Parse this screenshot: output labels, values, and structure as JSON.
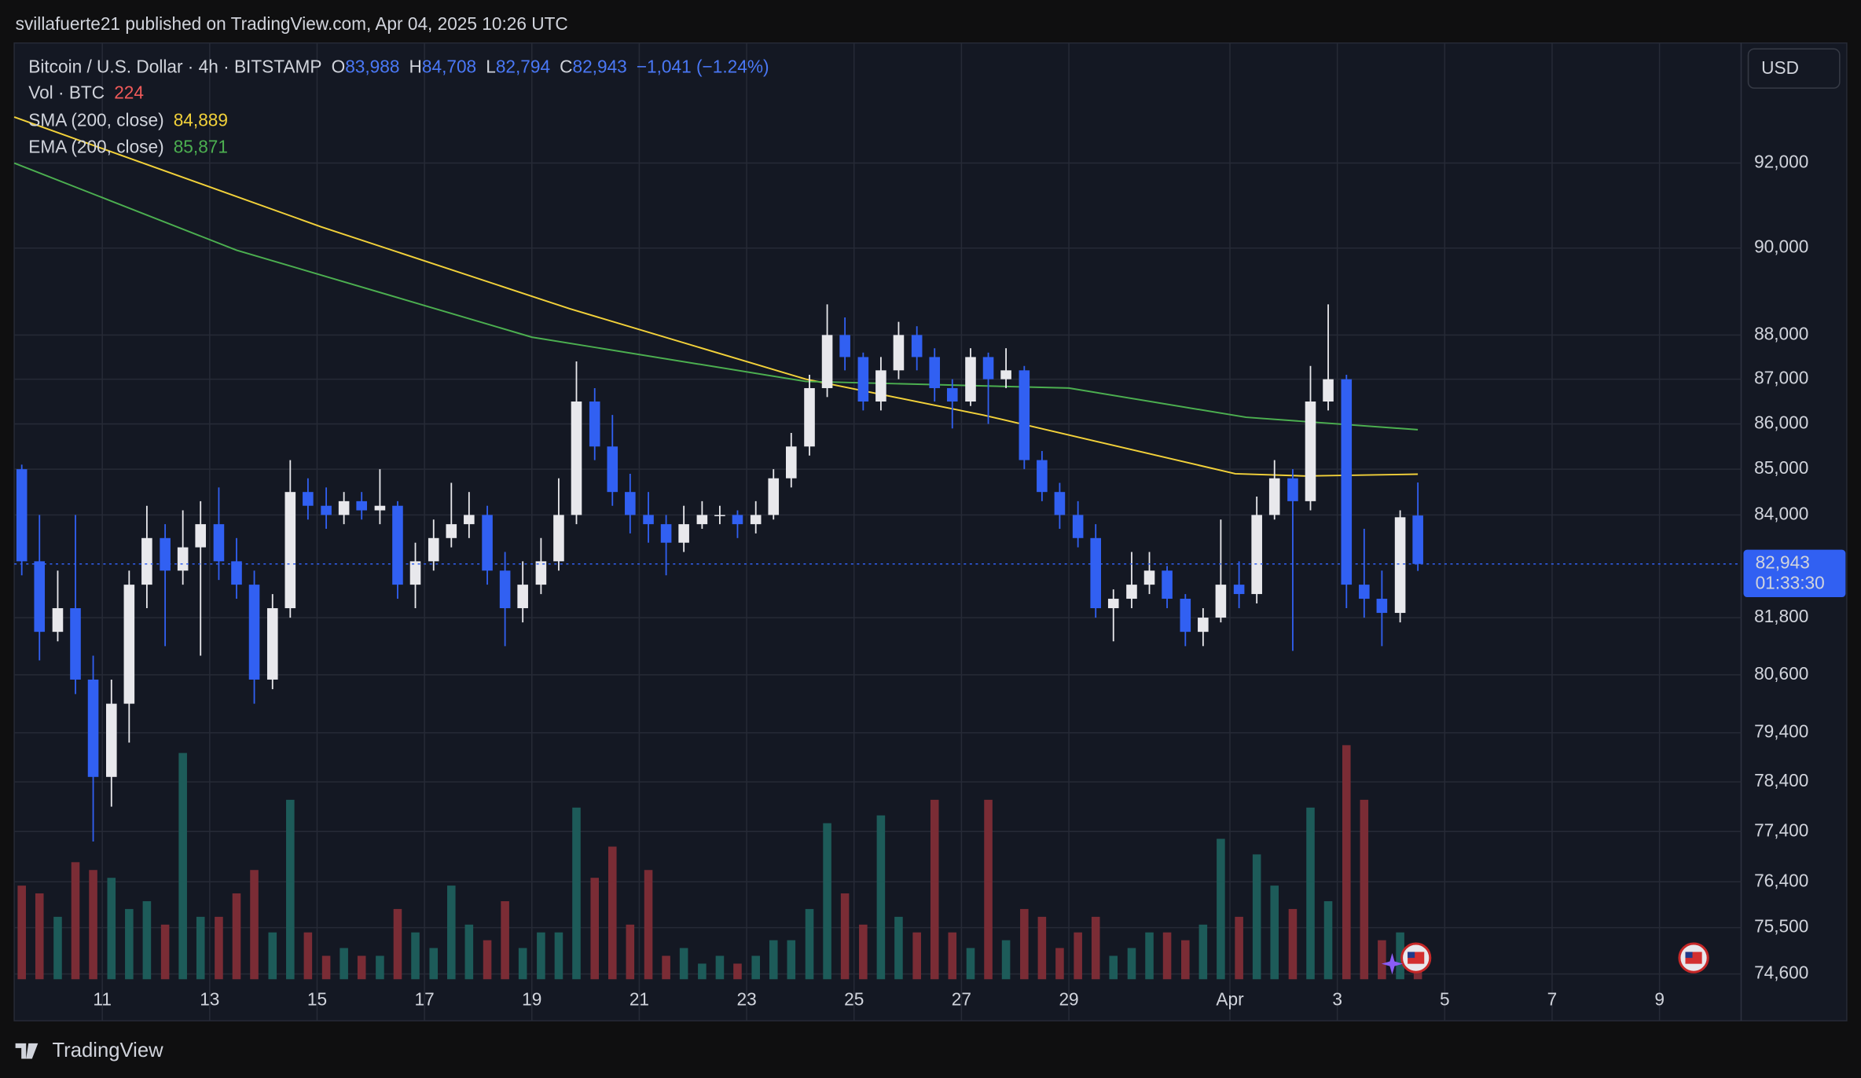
{
  "header": {
    "published": "svillafuerte21 published on TradingView.com, Apr 04, 2025 10:26 UTC",
    "currency": "USD",
    "brand": "TradingView"
  },
  "legend": {
    "ohlc": [
      {
        "key": "O",
        "value": "83,988"
      },
      {
        "key": "H",
        "value": "84,708"
      },
      {
        "key": "L",
        "value": "82,794"
      },
      {
        "key": "C",
        "value": "82,943"
      }
    ],
    "change": "−1,041 (−1.24%)",
    "volume_name": "Vol · BTC",
    "volume_value": "224"
  },
  "chart_data": {
    "type": "candlestick",
    "title": "Bitcoin / U.S. Dollar · 4h · BITSTAMP",
    "log_scale": true,
    "grid": true,
    "up_color": "#e8e8ec",
    "down_color": "#3160f2",
    "volume_up_color": "#1d5b59",
    "volume_down_color": "#7a2c35",
    "xlim": [
      9.36,
      41.52
    ],
    "xticks": [
      11,
      13,
      15,
      17,
      19,
      21,
      23,
      25,
      27,
      29,
      {
        "value": 32,
        "label": "Apr"
      },
      {
        "value": 34,
        "label": "3"
      },
      {
        "value": 36,
        "label": "5"
      },
      {
        "value": 38,
        "label": "7"
      },
      {
        "value": 40,
        "label": "9"
      }
    ],
    "ylim": [
      74500,
      94900
    ],
    "yticks": [
      {
        "value": 92000,
        "label": "92,000"
      },
      {
        "value": 90000,
        "label": "90,000"
      },
      {
        "value": 88000,
        "label": "88,000"
      },
      {
        "value": 87000,
        "label": "87,000"
      },
      {
        "value": 86000,
        "label": "86,000"
      },
      {
        "value": 85000,
        "label": "85,000"
      },
      {
        "value": 84000,
        "label": "84,000"
      },
      {
        "value": 81800,
        "label": "81,800"
      },
      {
        "value": 80600,
        "label": "80,600"
      },
      {
        "value": 79400,
        "label": "79,400"
      },
      {
        "value": 78400,
        "label": "78,400"
      },
      {
        "value": 77400,
        "label": "77,400"
      },
      {
        "value": 76400,
        "label": "76,400"
      },
      {
        "value": 75500,
        "label": "75,500"
      },
      {
        "value": 74600,
        "label": "74,600"
      }
    ],
    "y2lim": [
      0,
      12000
    ],
    "x": [
      9.5,
      9.83,
      10.17,
      10.5,
      10.83,
      11.17,
      11.5,
      11.83,
      12.17,
      12.5,
      12.83,
      13.17,
      13.5,
      13.83,
      14.17,
      14.5,
      14.83,
      15.17,
      15.5,
      15.83,
      16.17,
      16.5,
      16.83,
      17.17,
      17.5,
      17.83,
      18.17,
      18.5,
      18.83,
      19.17,
      19.5,
      19.83,
      20.17,
      20.5,
      20.83,
      21.17,
      21.5,
      21.83,
      22.17,
      22.5,
      22.83,
      23.17,
      23.5,
      23.83,
      24.17,
      24.5,
      24.83,
      25.17,
      25.5,
      25.83,
      26.17,
      26.5,
      26.83,
      27.17,
      27.5,
      27.83,
      28.17,
      28.5,
      28.83,
      29.17,
      29.5,
      29.83,
      30.17,
      30.5,
      30.83,
      31.17,
      31.5,
      31.83,
      32.17,
      32.5,
      32.83,
      33.17,
      33.5,
      33.83,
      34.17,
      34.5,
      34.83,
      35.17,
      35.5
    ],
    "open": [
      85000,
      83000,
      81500,
      82000,
      80500,
      78500,
      80000,
      82500,
      83500,
      82800,
      83300,
      83800,
      83000,
      82500,
      80500,
      82000,
      84500,
      84200,
      84000,
      84300,
      84100,
      84200,
      82500,
      83000,
      83500,
      83800,
      84000,
      82800,
      82000,
      82500,
      83000,
      84000,
      86500,
      85500,
      84500,
      84000,
      83800,
      83400,
      83800,
      84000,
      84000,
      83800,
      84000,
      84800,
      85500,
      86800,
      88000,
      87500,
      86500,
      87200,
      88000,
      87500,
      86800,
      86500,
      87500,
      87000,
      87200,
      85200,
      84500,
      84000,
      83500,
      82000,
      82200,
      82500,
      82800,
      82200,
      81500,
      81800,
      82500,
      82300,
      84000,
      84800,
      84300,
      86500,
      87000,
      82500,
      82200,
      81900,
      83988
    ],
    "high": [
      85100,
      84000,
      82800,
      84000,
      81000,
      80500,
      82800,
      84200,
      83800,
      84100,
      84300,
      84600,
      83500,
      82800,
      82300,
      85200,
      84800,
      84600,
      84500,
      84500,
      85000,
      84300,
      83400,
      83900,
      84700,
      84500,
      84200,
      83200,
      83000,
      83500,
      84800,
      87400,
      86800,
      86200,
      84900,
      84500,
      84000,
      84200,
      84300,
      84200,
      84100,
      84300,
      85000,
      85800,
      87100,
      88700,
      88400,
      87600,
      87500,
      88300,
      88200,
      87700,
      87000,
      87700,
      87600,
      87700,
      87300,
      85400,
      84700,
      84300,
      83800,
      82400,
      83200,
      83200,
      82900,
      82300,
      82000,
      83900,
      83000,
      84400,
      85200,
      85000,
      87300,
      88700,
      87100,
      83700,
      82800,
      84100,
      84708
    ],
    "low": [
      82700,
      80900,
      81300,
      80200,
      77200,
      77900,
      79200,
      82000,
      81200,
      82500,
      81000,
      82600,
      82200,
      80000,
      80300,
      81800,
      83900,
      83700,
      83800,
      83900,
      83800,
      82200,
      82000,
      82800,
      83300,
      83500,
      82500,
      81200,
      81700,
      82300,
      82800,
      83800,
      85200,
      84200,
      83600,
      83400,
      82700,
      83200,
      83700,
      83800,
      83500,
      83600,
      83900,
      84600,
      85300,
      86600,
      87200,
      86300,
      86300,
      87000,
      87200,
      86500,
      85900,
      86400,
      86000,
      86800,
      85000,
      84300,
      83700,
      83300,
      81800,
      81300,
      82000,
      82300,
      82000,
      81200,
      81200,
      81700,
      82000,
      82100,
      83900,
      81100,
      84100,
      86300,
      82000,
      81800,
      81200,
      81700,
      82794
    ],
    "close": [
      83000,
      81500,
      82000,
      80500,
      78500,
      80000,
      82500,
      83500,
      82800,
      83300,
      83800,
      83000,
      82500,
      80500,
      82000,
      84500,
      84200,
      84000,
      84300,
      84100,
      84200,
      82500,
      83000,
      83500,
      83800,
      84000,
      82800,
      82000,
      82500,
      83000,
      84000,
      86500,
      85500,
      84500,
      84000,
      83800,
      83400,
      83800,
      84000,
      84000,
      83800,
      84000,
      84800,
      85500,
      86800,
      88000,
      87500,
      86500,
      87200,
      88000,
      87500,
      86800,
      86500,
      87500,
      87000,
      87200,
      85200,
      84500,
      84000,
      83500,
      82000,
      82200,
      82500,
      82800,
      82200,
      81500,
      81800,
      82500,
      82300,
      84000,
      84800,
      84300,
      86500,
      87000,
      82500,
      82200,
      81900,
      83950,
      82943
    ],
    "volume": [
      1200,
      1100,
      800,
      1500,
      1400,
      1300,
      900,
      1000,
      700,
      2900,
      800,
      800,
      1100,
      1400,
      600,
      2300,
      600,
      300,
      400,
      300,
      300,
      900,
      600,
      400,
      1200,
      700,
      500,
      1000,
      400,
      600,
      600,
      2200,
      1300,
      1700,
      700,
      1400,
      300,
      400,
      200,
      300,
      200,
      300,
      500,
      500,
      900,
      2000,
      1100,
      700,
      2100,
      800,
      600,
      2300,
      600,
      400,
      2300,
      500,
      900,
      800,
      400,
      600,
      800,
      300,
      400,
      600,
      600,
      500,
      700,
      1800,
      800,
      1600,
      1200,
      900,
      2200,
      1000,
      3000,
      2300,
      500,
      600,
      224
    ],
    "lines": [
      {
        "name": "SMA (200, close)",
        "color": "#f2d13a",
        "x": [
          9.36,
          15.07,
          19.7,
          24.1,
          27.4,
          32.1,
          33.4,
          35.5
        ],
        "values": [
          93100,
          90500,
          88600,
          87000,
          86200,
          84900,
          84850,
          84889
        ],
        "value_labels": [
          null,
          null,
          null,
          null,
          null,
          null,
          null,
          "84,889"
        ]
      },
      {
        "name": "EMA (200, close)",
        "color": "#4caf50",
        "x": [
          9.36,
          13.5,
          19.0,
          24.1,
          29.0,
          32.3,
          35.5
        ],
        "values": [
          92000,
          89950,
          87950,
          86950,
          86800,
          86150,
          85871
        ],
        "value_labels": [
          null,
          null,
          null,
          null,
          null,
          null,
          "85,871"
        ]
      }
    ],
    "last_price": {
      "value": 82943,
      "label": "82,943",
      "countdown": "01:33:30"
    }
  }
}
